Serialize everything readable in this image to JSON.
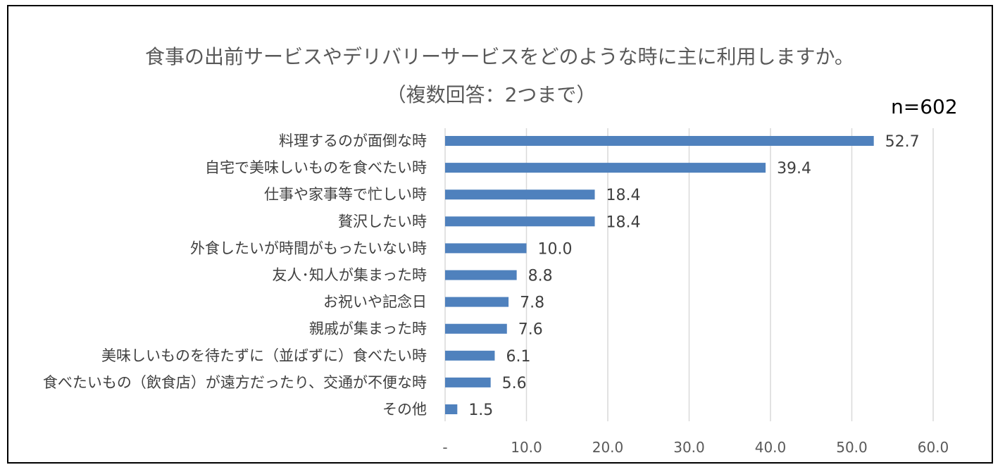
{
  "chart_data": {
    "type": "bar",
    "orientation": "horizontal",
    "title": "食事の出前サービスやデリバリーサービスをどのような時に主に利用しますか。",
    "subtitle": "（複数回答：2つまで）",
    "sample_size": "n=602",
    "categories": [
      "料理するのが面倒な時",
      "自宅で美味しいものを食べたい時",
      "仕事や家事等で忙しい時",
      "贅沢したい時",
      "外食したいが時間がもったいない時",
      "友人･知人が集まった時",
      "お祝いや記念日",
      "親戚が集まった時",
      "美味しいものを待たずに（並ばずに）食べたい時",
      "食べたいもの（飲食店）が遠方だったり、交通が不便な時",
      "その他"
    ],
    "values": [
      52.7,
      39.4,
      18.4,
      18.4,
      10.0,
      8.8,
      7.8,
      7.6,
      6.1,
      5.6,
      1.5
    ],
    "value_labels": [
      "52.7",
      "39.4",
      "18.4",
      "18.4",
      "10.0",
      "8.8",
      "7.8",
      "7.6",
      "6.1",
      "5.6",
      "1.5"
    ],
    "xlim": [
      0,
      60
    ],
    "ticks": [
      0,
      10,
      20,
      30,
      40,
      50,
      60
    ],
    "tick_labels": [
      "-",
      "10.0",
      "20.0",
      "30.0",
      "40.0",
      "50.0",
      "60.0"
    ],
    "grid": true,
    "legend": "none",
    "bar_color": "#4F81BD",
    "grid_color": "#D9D9D9"
  }
}
